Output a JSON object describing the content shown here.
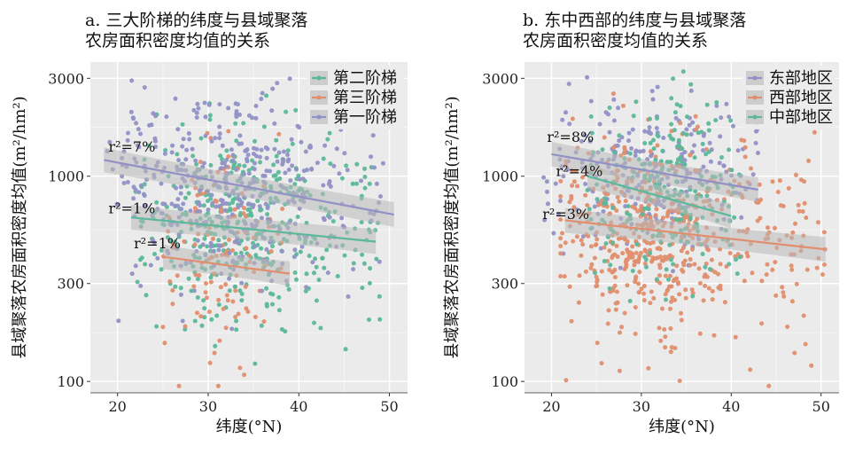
{
  "colors": {
    "teal": "#5bb89a",
    "salmon": "#e08e6d",
    "purple": "#9291c6",
    "panel_bg": "#ebebeb",
    "grid": "#ffffff",
    "band": "#b9b9b9"
  },
  "chart_data": [
    {
      "type": "scatter",
      "title": "a. 三大阶梯的纬度与县域聚落\n农房面积密度均值的关系",
      "title_lines": [
        "a. 三大阶梯的纬度与县域聚落",
        "农房面积密度均值的关系"
      ],
      "xlabel": "纬度(°N)",
      "ylabel": "县域聚落农房面积密度均值(m²/hm²)",
      "xlim": [
        17,
        52
      ],
      "ylim": [
        88,
        3600
      ],
      "y_scale": "log",
      "x_ticks": [
        20,
        30,
        40,
        50
      ],
      "x_tick_labels": [
        "20",
        "30",
        "40",
        "50"
      ],
      "y_ticks": [
        100,
        300,
        1000,
        3000
      ],
      "y_tick_labels": [
        "100",
        "300",
        "1000",
        "3000"
      ],
      "grid": true,
      "legend_position": "top-right",
      "series": [
        {
          "name": "第二阶梯",
          "color": "teal",
          "fit": {
            "x0": 21.5,
            "y0": 630,
            "x1": 48.5,
            "y1": 480,
            "r2_label": "r²=1%",
            "label_x": 19,
            "label_y": 660
          },
          "cloud": {
            "x_range": [
              22,
              49
            ],
            "center_x": 33,
            "center_y": 580,
            "spread": 0.45,
            "n": 430,
            "seed": 11
          }
        },
        {
          "name": "第三阶梯",
          "color": "salmon",
          "fit": {
            "x0": 25,
            "y0": 405,
            "x1": 39,
            "y1": 335,
            "r2_label": "r²=1%",
            "label_x": 21.8,
            "label_y": 445
          },
          "cloud": {
            "x_range": [
              25,
              39
            ],
            "center_x": 31,
            "center_y": 380,
            "spread": 0.5,
            "n": 120,
            "seed": 23
          }
        },
        {
          "name": "第一阶梯",
          "color": "purple",
          "fit": {
            "x0": 18.5,
            "y0": 1200,
            "x1": 50.5,
            "y1": 650,
            "r2_label": "r²=7%",
            "label_x": 19,
            "label_y": 1320
          },
          "cloud": {
            "x_range": [
              18.5,
              50
            ],
            "center_x": 33,
            "center_y": 900,
            "spread": 0.45,
            "n": 420,
            "seed": 37
          }
        }
      ]
    },
    {
      "type": "scatter",
      "title": "b. 东中西部的纬度与县域聚落\n农房面积密度均值的关系",
      "title_lines": [
        "b. 东中西部的纬度与县域聚落",
        "农房面积密度均值的关系"
      ],
      "xlabel": "纬度(°N)",
      "ylabel": "县域聚落农房面积密度均值(m²/hm²)",
      "xlim": [
        17,
        52
      ],
      "ylim": [
        88,
        3600
      ],
      "y_scale": "log",
      "x_ticks": [
        20,
        30,
        40,
        50
      ],
      "x_tick_labels": [
        "20",
        "30",
        "40",
        "50"
      ],
      "y_ticks": [
        100,
        300,
        1000,
        3000
      ],
      "y_tick_labels": [
        "100",
        "300",
        "1000",
        "3000"
      ],
      "grid": true,
      "legend_position": "top-right",
      "series": [
        {
          "name": "东部地区",
          "color": "purple",
          "fit": {
            "x0": 20,
            "y0": 1280,
            "x1": 43,
            "y1": 860,
            "r2_label": "r²=8%",
            "label_x": 19.5,
            "label_y": 1470
          },
          "cloud": {
            "x_range": [
              19,
              43
            ],
            "center_x": 32,
            "center_y": 1050,
            "spread": 0.4,
            "n": 260,
            "seed": 41
          }
        },
        {
          "name": "西部地区",
          "color": "salmon",
          "fit": {
            "x0": 21.5,
            "y0": 610,
            "x1": 50.5,
            "y1": 440,
            "r2_label": "r²=3%",
            "label_x": 19,
            "label_y": 620
          },
          "cloud": {
            "x_range": [
              21,
              50.5
            ],
            "center_x": 31,
            "center_y": 520,
            "spread": 0.5,
            "n": 560,
            "seed": 53
          }
        },
        {
          "name": "中部地区",
          "color": "teal",
          "fit": {
            "x0": 24,
            "y0": 1000,
            "x1": 40,
            "y1": 640,
            "r2_label": "r²=4%",
            "label_x": 20.5,
            "label_y": 1000
          },
          "cloud": {
            "x_range": [
              24,
              41
            ],
            "center_x": 33,
            "center_y": 800,
            "spread": 0.45,
            "n": 220,
            "seed": 67
          }
        }
      ]
    }
  ]
}
